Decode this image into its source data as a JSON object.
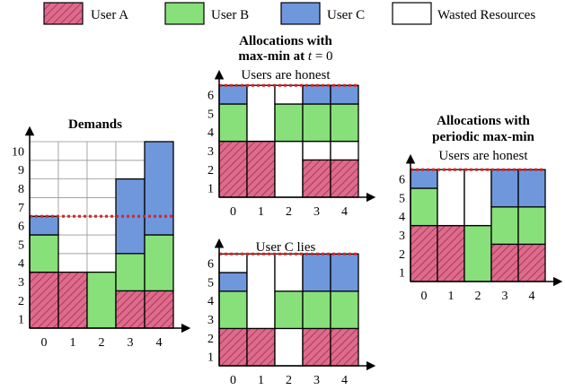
{
  "colors": {
    "user_a_fill": "#de6b8c",
    "user_a_hatch": "#9a2d4f",
    "user_b": "#88e07a",
    "user_c": "#6f97dc",
    "wasted": "#ffffff",
    "cap_line": "#e02020",
    "grid": "#9a9a9a",
    "stroke": "#000000"
  },
  "legend": [
    {
      "key": "a",
      "label": "User A"
    },
    {
      "key": "b",
      "label": "User B"
    },
    {
      "key": "c",
      "label": "User C"
    },
    {
      "key": "w",
      "label": "Wasted Resources"
    }
  ],
  "charts": [
    {
      "id": "demands",
      "title": "Demands",
      "title_lines": [
        "Demands"
      ],
      "subtitle": "",
      "y_ticks": [
        "1",
        "2",
        "3",
        "4",
        "5",
        "6",
        "7",
        "8",
        "9",
        "10"
      ],
      "x_ticks": [
        "0",
        "1",
        "2",
        "3",
        "4"
      ],
      "ymax": 10,
      "capacity": 6,
      "stacks": [
        [
          {
            "k": "a",
            "v": 3
          },
          {
            "k": "b",
            "v": 2
          },
          {
            "k": "c",
            "v": 1
          }
        ],
        [
          {
            "k": "a",
            "v": 3
          }
        ],
        [
          {
            "k": "b",
            "v": 3
          }
        ],
        [
          {
            "k": "a",
            "v": 2
          },
          {
            "k": "b",
            "v": 2
          },
          {
            "k": "c",
            "v": 4
          }
        ],
        [
          {
            "k": "a",
            "v": 2
          },
          {
            "k": "b",
            "v": 3
          },
          {
            "k": "c",
            "v": 5
          }
        ]
      ]
    },
    {
      "id": "maxmin-honest",
      "title_lines": [
        "Allocations with",
        "max-min at t = 0"
      ],
      "subtitle": "Users are honest",
      "y_ticks": [
        "1",
        "2",
        "3",
        "4",
        "5",
        "6"
      ],
      "x_ticks": [
        "0",
        "1",
        "2",
        "3",
        "4"
      ],
      "ymax": 6,
      "capacity": 6,
      "stacks": [
        [
          {
            "k": "a",
            "v": 3
          },
          {
            "k": "b",
            "v": 2
          },
          {
            "k": "c",
            "v": 1
          }
        ],
        [
          {
            "k": "a",
            "v": 3
          },
          {
            "k": "w",
            "v": 3
          }
        ],
        [
          {
            "k": "w",
            "v": 3
          },
          {
            "k": "b",
            "v": 2
          },
          {
            "k": "w",
            "v": 1
          }
        ],
        [
          {
            "k": "a",
            "v": 2
          },
          {
            "k": "w",
            "v": 1
          },
          {
            "k": "b",
            "v": 2
          },
          {
            "k": "c",
            "v": 1
          }
        ],
        [
          {
            "k": "a",
            "v": 2
          },
          {
            "k": "w",
            "v": 1
          },
          {
            "k": "b",
            "v": 2
          },
          {
            "k": "c",
            "v": 1
          }
        ]
      ]
    },
    {
      "id": "maxmin-clies",
      "title_lines": [],
      "subtitle": "User C lies",
      "y_ticks": [
        "1",
        "2",
        "3",
        "4",
        "5",
        "6"
      ],
      "x_ticks": [
        "0",
        "1",
        "2",
        "3",
        "4"
      ],
      "ymax": 6,
      "capacity": 6,
      "stacks": [
        [
          {
            "k": "a",
            "v": 2
          },
          {
            "k": "b",
            "v": 2
          },
          {
            "k": "c",
            "v": 1
          },
          {
            "k": "w",
            "v": 1
          }
        ],
        [
          {
            "k": "a",
            "v": 2
          },
          {
            "k": "w",
            "v": 4
          }
        ],
        [
          {
            "k": "w",
            "v": 2
          },
          {
            "k": "b",
            "v": 2
          },
          {
            "k": "w",
            "v": 2
          }
        ],
        [
          {
            "k": "a",
            "v": 2
          },
          {
            "k": "b",
            "v": 2
          },
          {
            "k": "c",
            "v": 2
          }
        ],
        [
          {
            "k": "a",
            "v": 2
          },
          {
            "k": "b",
            "v": 2
          },
          {
            "k": "c",
            "v": 2
          }
        ]
      ]
    },
    {
      "id": "periodic",
      "title_lines": [
        "Allocations with",
        "periodic max-min"
      ],
      "subtitle": "Users are honest",
      "y_ticks": [
        "1",
        "2",
        "3",
        "4",
        "5",
        "6"
      ],
      "x_ticks": [
        "0",
        "1",
        "2",
        "3",
        "4"
      ],
      "ymax": 6,
      "capacity": 6,
      "stacks": [
        [
          {
            "k": "a",
            "v": 3
          },
          {
            "k": "b",
            "v": 2
          },
          {
            "k": "c",
            "v": 1
          }
        ],
        [
          {
            "k": "a",
            "v": 3
          },
          {
            "k": "w",
            "v": 3
          }
        ],
        [
          {
            "k": "b",
            "v": 3
          },
          {
            "k": "w",
            "v": 3
          }
        ],
        [
          {
            "k": "a",
            "v": 2
          },
          {
            "k": "b",
            "v": 2
          },
          {
            "k": "c",
            "v": 2
          }
        ],
        [
          {
            "k": "a",
            "v": 2
          },
          {
            "k": "b",
            "v": 2
          },
          {
            "k": "c",
            "v": 2
          }
        ]
      ]
    }
  ]
}
